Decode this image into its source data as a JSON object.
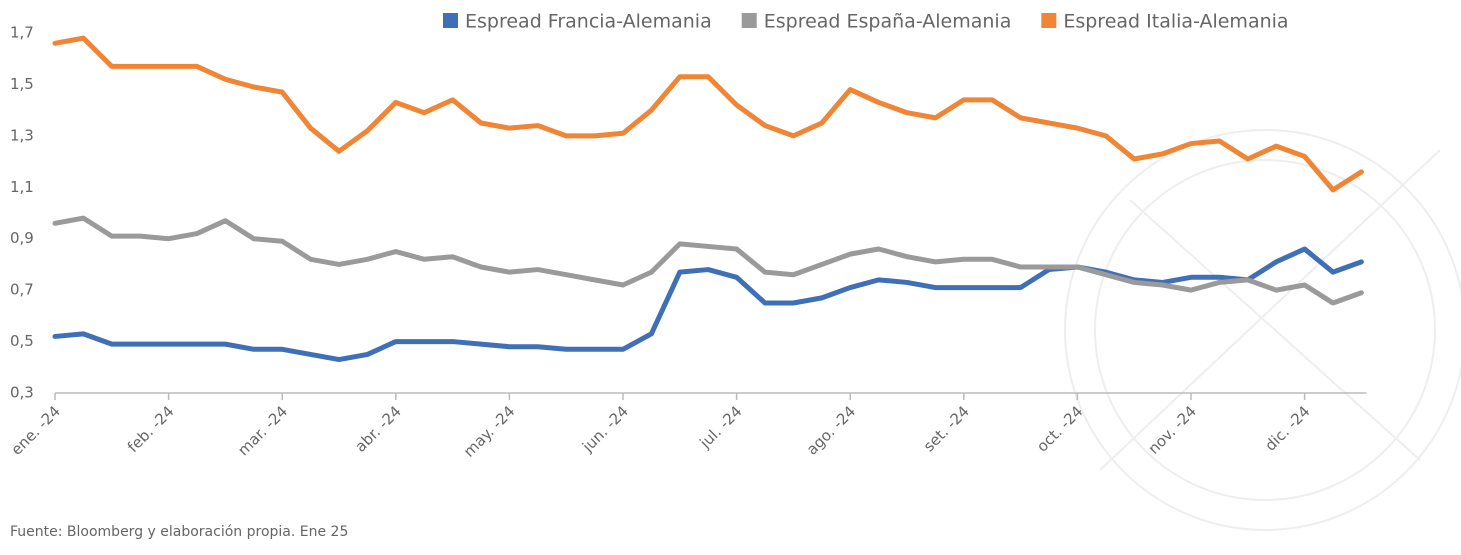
{
  "chart_data": {
    "type": "line",
    "categories": [
      "ene. -24",
      null,
      null,
      null,
      "feb. -24",
      null,
      null,
      null,
      "mar. -24",
      null,
      null,
      null,
      "abr. -24",
      null,
      null,
      null,
      "may. -24",
      null,
      null,
      null,
      "jun. -24",
      null,
      null,
      null,
      "jul. -24",
      null,
      null,
      null,
      "ago. -24",
      null,
      null,
      null,
      "set. -24",
      null,
      null,
      null,
      "oct. -24",
      null,
      null,
      null,
      "nov. -24",
      null,
      null,
      null,
      "dic. -24",
      null,
      null
    ],
    "series": [
      {
        "name": "Espread Francia-Alemania",
        "color": "#3e6fb7",
        "values": [
          0.52,
          0.53,
          0.49,
          0.49,
          0.49,
          0.49,
          0.49,
          0.47,
          0.47,
          0.45,
          0.43,
          0.45,
          0.5,
          0.5,
          0.5,
          0.49,
          0.48,
          0.48,
          0.47,
          0.47,
          0.47,
          0.53,
          0.77,
          0.78,
          0.75,
          0.65,
          0.65,
          0.67,
          0.71,
          0.74,
          0.73,
          0.71,
          0.71,
          0.71,
          0.71,
          0.78,
          0.79,
          0.77,
          0.74,
          0.73,
          0.75,
          0.75,
          0.74,
          0.81,
          0.86,
          0.77,
          0.81
        ]
      },
      {
        "name": "Espread España-Alemania",
        "color": "#9a9a9a",
        "values": [
          0.96,
          0.98,
          0.91,
          0.91,
          0.9,
          0.92,
          0.97,
          0.9,
          0.89,
          0.82,
          0.8,
          0.82,
          0.85,
          0.82,
          0.83,
          0.79,
          0.77,
          0.78,
          0.76,
          0.74,
          0.72,
          0.77,
          0.88,
          0.87,
          0.86,
          0.77,
          0.76,
          0.8,
          0.84,
          0.86,
          0.83,
          0.81,
          0.82,
          0.82,
          0.79,
          0.79,
          0.79,
          0.76,
          0.73,
          0.72,
          0.7,
          0.73,
          0.74,
          0.7,
          0.72,
          0.65,
          0.69
        ]
      },
      {
        "name": "Espread Italia-Alemania",
        "color": "#ef8535",
        "values": [
          1.66,
          1.68,
          1.57,
          1.57,
          1.57,
          1.57,
          1.52,
          1.49,
          1.47,
          1.33,
          1.24,
          1.32,
          1.43,
          1.39,
          1.44,
          1.35,
          1.33,
          1.34,
          1.3,
          1.3,
          1.31,
          1.4,
          1.53,
          1.53,
          1.42,
          1.34,
          1.3,
          1.35,
          1.48,
          1.43,
          1.39,
          1.37,
          1.44,
          1.44,
          1.37,
          1.35,
          1.33,
          1.3,
          1.21,
          1.23,
          1.27,
          1.28,
          1.21,
          1.26,
          1.22,
          1.09,
          1.16
        ]
      }
    ],
    "ylim": [
      0.3,
      1.7
    ],
    "yticks": [
      {
        "value": 0.3,
        "label": "0,3"
      },
      {
        "value": 0.5,
        "label": "0,5"
      },
      {
        "value": 0.7,
        "label": "0,7"
      },
      {
        "value": 0.9,
        "label": "0,9"
      },
      {
        "value": 1.1,
        "label": "1,1"
      },
      {
        "value": 1.3,
        "label": "1,3"
      },
      {
        "value": 1.5,
        "label": "1,5"
      },
      {
        "value": 1.7,
        "label": "1,7"
      }
    ],
    "grid": false,
    "legend": "top",
    "note": "Fuente: Bloomberg y elaboración propia. Ene 25"
  }
}
